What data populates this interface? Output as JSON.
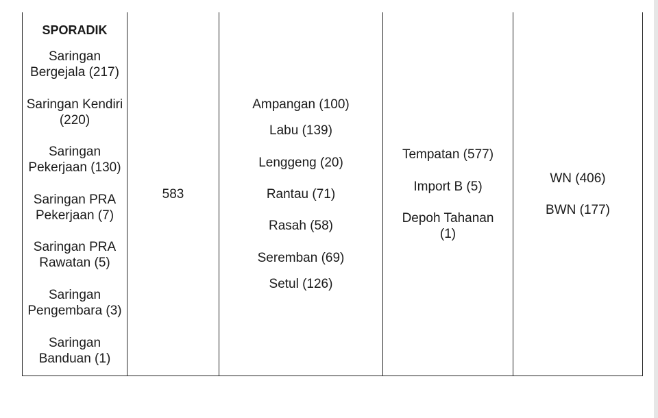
{
  "table": {
    "row": {
      "category": {
        "heading": "SPORADIK",
        "items": [
          "Saringan Bergejala (217)",
          "Saringan Kendiri (220)",
          "Saringan Pekerjaan (130)",
          "Saringan PRA Pekerjaan (7)",
          "Saringan PRA Rawatan (5)",
          "Saringan Pengembara (3)",
          "Saringan Banduan (1)"
        ]
      },
      "total": "583",
      "districts": [
        "Ampangan (100)",
        "Labu (139)",
        "Lenggeng (20)",
        "Rantau (71)",
        "Rasah (58)",
        "Seremban (69)",
        "Setul (126)"
      ],
      "sources": [
        "Tempatan (577)",
        "Import B (5)",
        "Depoh Tahanan (1)"
      ],
      "citizenship": [
        "WN (406)",
        "BWN (177)"
      ]
    }
  }
}
